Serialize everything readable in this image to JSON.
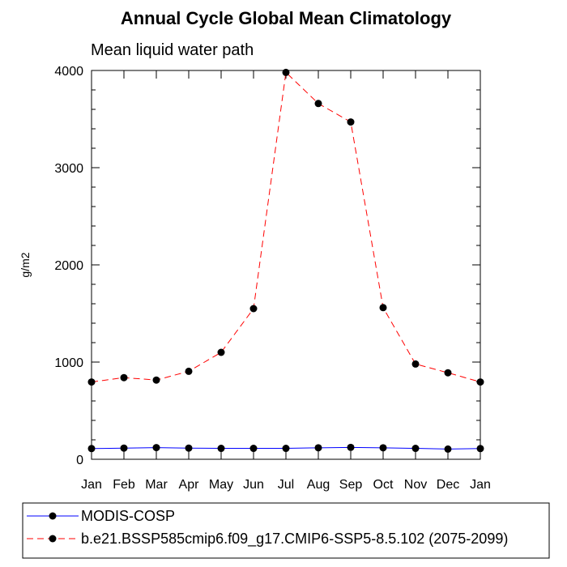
{
  "chart_data": {
    "type": "line",
    "title": "Annual Cycle Global Mean Climatology",
    "subtitle": "Mean liquid water path",
    "xlabel": "",
    "ylabel": "g/m2",
    "categories": [
      "Jan",
      "Feb",
      "Mar",
      "Apr",
      "May",
      "Jun",
      "Jul",
      "Aug",
      "Sep",
      "Oct",
      "Nov",
      "Dec",
      "Jan"
    ],
    "ylim": [
      0,
      4000
    ],
    "yticks": [
      0,
      1000,
      2000,
      3000,
      4000
    ],
    "grid": false,
    "legend_position": "bottom-left",
    "series": [
      {
        "name": "MODIS-COSP",
        "color": "#0000ff",
        "line_style": "solid",
        "marker": "filled-circle",
        "values": [
          110,
          115,
          120,
          115,
          112,
          112,
          112,
          118,
          122,
          118,
          112,
          105,
          110
        ]
      },
      {
        "name": "b.e21.BSSP585cmip6.f09_g17.CMIP6-SSP5-8.5.102 (2075-2099)",
        "color": "#ff0000",
        "line_style": "dashed",
        "marker": "filled-circle",
        "values": [
          795,
          840,
          815,
          905,
          1100,
          1550,
          3980,
          3660,
          3470,
          1560,
          980,
          890,
          795
        ]
      }
    ]
  }
}
